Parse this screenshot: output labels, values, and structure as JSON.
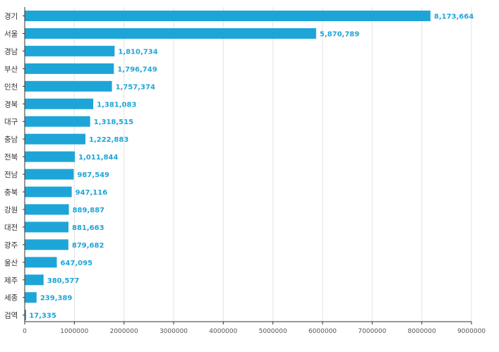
{
  "chart_data": {
    "type": "bar",
    "orientation": "horizontal",
    "categories": [
      "경기",
      "서울",
      "경남",
      "부산",
      "인천",
      "경북",
      "대구",
      "충남",
      "전북",
      "전남",
      "충북",
      "강원",
      "대전",
      "광주",
      "울산",
      "제주",
      "세종",
      "검역"
    ],
    "values": [
      8173664,
      5870789,
      1810734,
      1796749,
      1757374,
      1381083,
      1318515,
      1222883,
      1011844,
      987549,
      947116,
      889887,
      881663,
      879682,
      647095,
      380577,
      239389,
      17335
    ],
    "value_labels": [
      "8,173,664",
      "5,870,789",
      "1,810,734",
      "1,796,749",
      "1,757,374",
      "1,381,083",
      "1,318,515",
      "1,222,883",
      "1,011,844",
      "987,549",
      "947,116",
      "889,887",
      "881,663",
      "879,682",
      "647,095",
      "380,577",
      "239,389",
      "17,335"
    ],
    "xlim": [
      0,
      9000000
    ],
    "x_ticks": [
      0,
      1000000,
      2000000,
      3000000,
      4000000,
      5000000,
      6000000,
      7000000,
      8000000,
      9000000
    ],
    "x_tick_labels": [
      "0",
      "1000000",
      "2000000",
      "3000000",
      "4000000",
      "5000000",
      "6000000",
      "7000000",
      "8000000",
      "9000000"
    ],
    "grid": true,
    "legend": false,
    "title": "",
    "xlabel": "",
    "ylabel": "",
    "colors": {
      "bar": "#1ea5d8",
      "label": "#1ea5d8",
      "grid": "#e3e3e3",
      "axis": "#333333",
      "tick": "#555555"
    }
  }
}
